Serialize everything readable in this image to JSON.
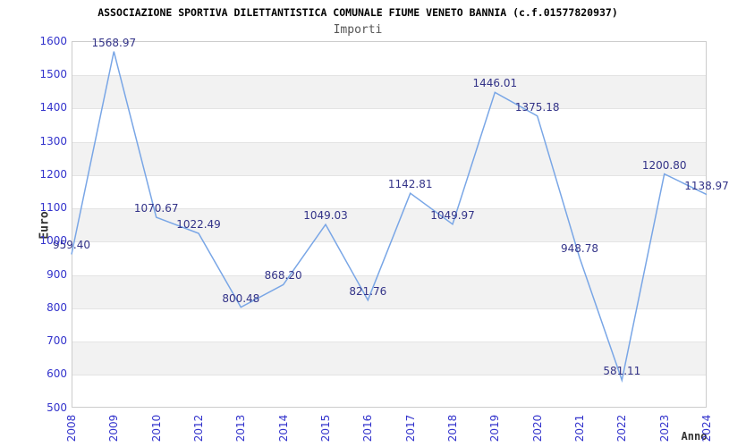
{
  "chart_data": {
    "type": "line",
    "title": "ASSOCIAZIONE SPORTIVA DILETTANTISTICA COMUNALE FIUME VENETO BANNIA (c.f.01577820937)",
    "subtitle": "Importi",
    "xlabel": "Anno",
    "ylabel": "Euro",
    "categories": [
      "2008",
      "2009",
      "2010",
      "2012",
      "2013",
      "2014",
      "2015",
      "2016",
      "2017",
      "2018",
      "2019",
      "2020",
      "2021",
      "2022",
      "2023",
      "2024"
    ],
    "series": [
      {
        "name": "Importi",
        "values": [
          959.4,
          1568.97,
          1070.67,
          1022.49,
          800.48,
          868.2,
          1049.03,
          821.76,
          1142.81,
          1049.97,
          1446.01,
          1375.18,
          948.78,
          581.11,
          1200.8,
          1138.97
        ],
        "point_labels": [
          "959.40",
          "1568.97",
          "1070.67",
          "1022.49",
          "800.48",
          "868.20",
          "1049.03",
          "821.76",
          "1142.81",
          "1049.97",
          "1446.01",
          "1375.18",
          "948.78",
          "581.11",
          "1200.80",
          "1138.97"
        ]
      }
    ],
    "ylim": [
      500,
      1600
    ],
    "ytick_step": 100,
    "grid": "horizontal-bands-every-100",
    "legend": "none"
  },
  "colors": {
    "line": "#79a6e6",
    "axis_tick_label": "#3333cc",
    "data_label": "#333388",
    "band": "#f2f2f2",
    "gridline": "#e4e4e4",
    "plot_border": "#cccccc",
    "title": "#000000",
    "subtitle": "#555555",
    "axis_title": "#333333",
    "background": "#ffffff"
  }
}
